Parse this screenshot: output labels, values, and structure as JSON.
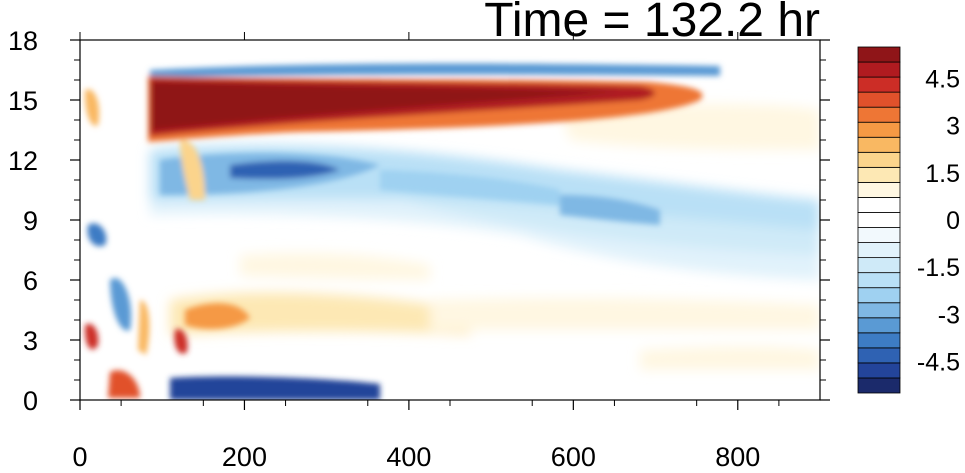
{
  "chart_data": {
    "type": "heatmap",
    "title": "Time = 132.2 hr",
    "xlabel": "",
    "ylabel": "",
    "xlim": [
      0,
      900
    ],
    "ylim": [
      0,
      18
    ],
    "xticks": [
      "0",
      "200",
      "400",
      "600",
      "800"
    ],
    "xtick_values": [
      0,
      200,
      400,
      600,
      800
    ],
    "yticks": [
      "0",
      "3",
      "6",
      "9",
      "12",
      "15",
      "18"
    ],
    "ytick_values": [
      0,
      3,
      6,
      9,
      12,
      15,
      18
    ],
    "colorbar": {
      "levels": [
        -5.5,
        -5,
        -4.5,
        -4,
        -3.5,
        -3,
        -2.5,
        -2,
        -1.5,
        -1,
        -0.5,
        0,
        0.5,
        1,
        1.5,
        2,
        2.5,
        3,
        3.5,
        4,
        4.5,
        5,
        5.5
      ],
      "colors": [
        "#1b2a6b",
        "#23449a",
        "#2f62b3",
        "#3d7cc4",
        "#5a9ad4",
        "#7fb8e4",
        "#9fd1f1",
        "#b9e0f6",
        "#cfeaf8",
        "#e1f2fb",
        "#f2f9fd",
        "#ffffff",
        "#ffffff",
        "#fff7e2",
        "#fde8b4",
        "#fbd48c",
        "#f9b862",
        "#f59944",
        "#ee7635",
        "#e1512b",
        "#cc2d26",
        "#b01b20",
        "#8f1518"
      ],
      "tick_labels": [
        "-4.5",
        "-3",
        "-1.5",
        "0",
        "1.5",
        "3",
        "4.5"
      ],
      "tick_values": [
        -4.5,
        -3,
        -1.5,
        0,
        1.5,
        3,
        4.5
      ]
    },
    "features": [
      {
        "x": [
          88,
          700
        ],
        "y": [
          13.0,
          16.4
        ],
        "value": 5.5
      },
      {
        "x": [
          700,
          790
        ],
        "y": [
          14.4,
          16.5
        ],
        "value": 1.5
      },
      {
        "x": [
          560,
          800
        ],
        "y": [
          13.0,
          14.5
        ],
        "value": 1.0
      },
      {
        "x": [
          90,
          350
        ],
        "y": [
          10.5,
          12.8
        ],
        "value": -4.0
      },
      {
        "x": [
          350,
          560
        ],
        "y": [
          9.5,
          12.5
        ],
        "value": -2.5
      },
      {
        "x": [
          560,
          900
        ],
        "y": [
          8.0,
          11.5
        ],
        "value": -1.5
      },
      {
        "x": [
          600,
          900
        ],
        "y": [
          6.0,
          8.5
        ],
        "value": -1.0
      },
      {
        "x": [
          90,
          350
        ],
        "y": [
          16.3,
          16.9
        ],
        "value": -3.0
      },
      {
        "x": [
          350,
          720
        ],
        "y": [
          16.4,
          16.9
        ],
        "value": -2.0
      },
      {
        "x": [
          110,
          380
        ],
        "y": [
          0,
          0.8
        ],
        "value": -5.5
      },
      {
        "x": [
          150,
          450
        ],
        "y": [
          2.5,
          5.0
        ],
        "value": 2.5
      },
      {
        "x": [
          450,
          900
        ],
        "y": [
          3.0,
          5.0
        ],
        "value": 0.5
      },
      {
        "x": [
          250,
          420
        ],
        "y": [
          6.0,
          7.5
        ],
        "value": 1.0
      },
      {
        "x": [
          5,
          30
        ],
        "y": [
          2.3,
          3.8
        ],
        "value": 5.0
      },
      {
        "x": [
          5,
          25
        ],
        "y": [
          14.0,
          15.8
        ],
        "value": 3.0
      },
      {
        "x": [
          40,
          85
        ],
        "y": [
          0,
          1.5
        ],
        "value": 4.0
      },
      {
        "x": [
          110,
          140
        ],
        "y": [
          2.0,
          3.5
        ],
        "value": 3.5
      },
      {
        "x": [
          15,
          40
        ],
        "y": [
          7.5,
          9.5
        ],
        "value": -3.0
      },
      {
        "x": [
          40,
          70
        ],
        "y": [
          3.5,
          7.0
        ],
        "value": -2.0
      },
      {
        "x": [
          650,
          900
        ],
        "y": [
          1.5,
          2.5
        ],
        "value": 0.5
      }
    ]
  }
}
